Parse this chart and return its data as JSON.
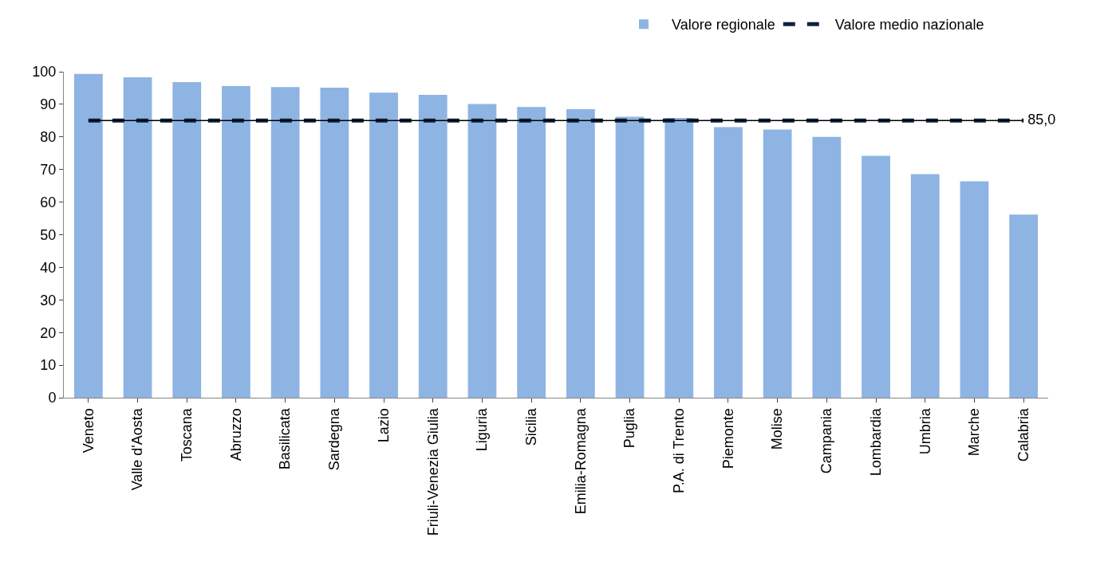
{
  "chart_data": {
    "type": "bar",
    "categories": [
      "Veneto",
      "Valle d'Aosta",
      "Toscana",
      "Abruzzo",
      "Basilicata",
      "Sardegna",
      "Lazio",
      "Friuli-Venezia Giulia",
      "Liguria",
      "Sicilia",
      "Emilia-Romagna",
      "Puglia",
      "P.A. di Trento",
      "Piemonte",
      "Molise",
      "Campania",
      "Lombardia",
      "Umbria",
      "Marche",
      "Calabria"
    ],
    "series": [
      {
        "name": "Valore regionale",
        "color": "#8eb4e3",
        "values": [
          99.3,
          98.3,
          96.8,
          95.6,
          95.3,
          95.1,
          93.6,
          92.9,
          90.1,
          89.2,
          88.5,
          86.2,
          85.8,
          83.0,
          82.3,
          80.0,
          74.2,
          68.6,
          66.4,
          56.2
        ]
      },
      {
        "name": "Valore medio nazionale",
        "type": "line",
        "color": "#0f243e",
        "line_style": "dashed",
        "values": [
          85,
          85,
          85,
          85,
          85,
          85,
          85,
          85,
          85,
          85,
          85,
          85,
          85,
          85,
          85,
          85,
          85,
          85,
          85,
          85
        ],
        "value_labels": [
          null,
          null,
          null,
          null,
          null,
          null,
          null,
          null,
          null,
          null,
          null,
          null,
          null,
          null,
          null,
          null,
          null,
          null,
          null,
          "85,0"
        ]
      }
    ],
    "ylim": [
      0,
      100
    ],
    "yticks": [
      0,
      10,
      20,
      30,
      40,
      50,
      60,
      70,
      80,
      90,
      100
    ],
    "legend": "top"
  }
}
